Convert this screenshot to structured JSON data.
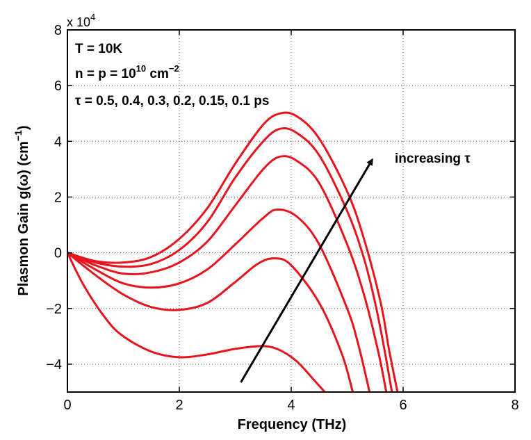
{
  "chart_data": {
    "type": "line",
    "xlabel": "Frequency (THz)",
    "ylabel_main": "Plasmon Gain g(ω) (cm",
    "ylabel_sup": "−1",
    "ylabel_close": ")",
    "y_multiplier": {
      "base": "x 10",
      "exp": "4"
    },
    "xlim": [
      0,
      8
    ],
    "ylim": [
      -50000,
      80000
    ],
    "x_ticks": [
      0,
      2,
      4,
      6,
      8
    ],
    "x_tick_labels": [
      "0",
      "2",
      "4",
      "6",
      "8"
    ],
    "y_ticks": [
      -40000,
      -20000,
      0,
      20000,
      40000,
      60000,
      80000
    ],
    "y_tick_labels": [
      "−4",
      "−2",
      "0",
      "2",
      "4",
      "6",
      "8"
    ],
    "grid": true,
    "line_color": "#e8141d",
    "annotations": {
      "line1": "T = 10K",
      "line2_pre": "n = p = 10",
      "line2_sup1": "10",
      "line2_mid": " cm",
      "line2_sup2": "−2",
      "line3": "τ = 0.5, 0.4, 0.3, 0.2, 0.15, 0.1 ps",
      "arrow_label": "increasing τ"
    },
    "arrow": {
      "from": [
        3.1,
        -46500
      ],
      "to": [
        5.45,
        33500
      ]
    },
    "series": [
      {
        "x": [
          0,
          0.5,
          1,
          1.5,
          2,
          2.5,
          3,
          3.5,
          3.8,
          4.1,
          4.5,
          5,
          5.3,
          5.6,
          5.75,
          5.9
        ],
        "y": [
          0,
          -3000,
          -3500,
          -1500,
          5000,
          16000,
          32000,
          46000,
          50000,
          49000,
          41000,
          22000,
          5000,
          -18000,
          -35000,
          -50000
        ]
      },
      {
        "x": [
          0,
          0.5,
          1,
          1.5,
          2,
          2.5,
          3,
          3.5,
          3.8,
          4.1,
          4.5,
          5,
          5.3,
          5.5,
          5.65,
          5.8
        ],
        "y": [
          0,
          -3500,
          -5000,
          -4000,
          1000,
          11000,
          27000,
          40000,
          44500,
          43000,
          35000,
          15000,
          -2000,
          -18000,
          -33000,
          -50000
        ]
      },
      {
        "x": [
          0,
          0.5,
          1,
          1.5,
          2,
          2.5,
          3,
          3.5,
          3.8,
          4.1,
          4.5,
          5,
          5.3,
          5.55,
          5.7
        ],
        "y": [
          0,
          -4500,
          -7500,
          -7000,
          -3500,
          4000,
          17000,
          30000,
          34500,
          33000,
          25000,
          3000,
          -15000,
          -35000,
          -50000
        ]
      },
      {
        "x": [
          0,
          0.5,
          1,
          1.5,
          2,
          2.5,
          3,
          3.5,
          3.75,
          4.1,
          4.5,
          5,
          5.2,
          5.4
        ],
        "y": [
          0,
          -6000,
          -11000,
          -12500,
          -11000,
          -6000,
          3000,
          12500,
          15500,
          13000,
          3000,
          -20000,
          -33000,
          -50000
        ]
      },
      {
        "x": [
          0,
          0.5,
          1,
          1.5,
          2,
          2.5,
          3,
          3.4,
          3.7,
          4,
          4.5,
          4.9,
          5.1
        ],
        "y": [
          0,
          -8000,
          -15000,
          -19500,
          -20500,
          -18000,
          -10500,
          -4000,
          -2000,
          -4500,
          -18000,
          -36000,
          -50000
        ]
      },
      {
        "x": [
          0,
          0.3,
          0.7,
          1,
          1.5,
          2,
          2.5,
          3,
          3.5,
          3.8,
          4.1,
          4.4,
          4.6
        ],
        "y": [
          0,
          -12000,
          -24000,
          -30000,
          -35500,
          -37500,
          -36500,
          -34500,
          -33500,
          -35000,
          -39000,
          -45500,
          -50000
        ]
      }
    ]
  }
}
